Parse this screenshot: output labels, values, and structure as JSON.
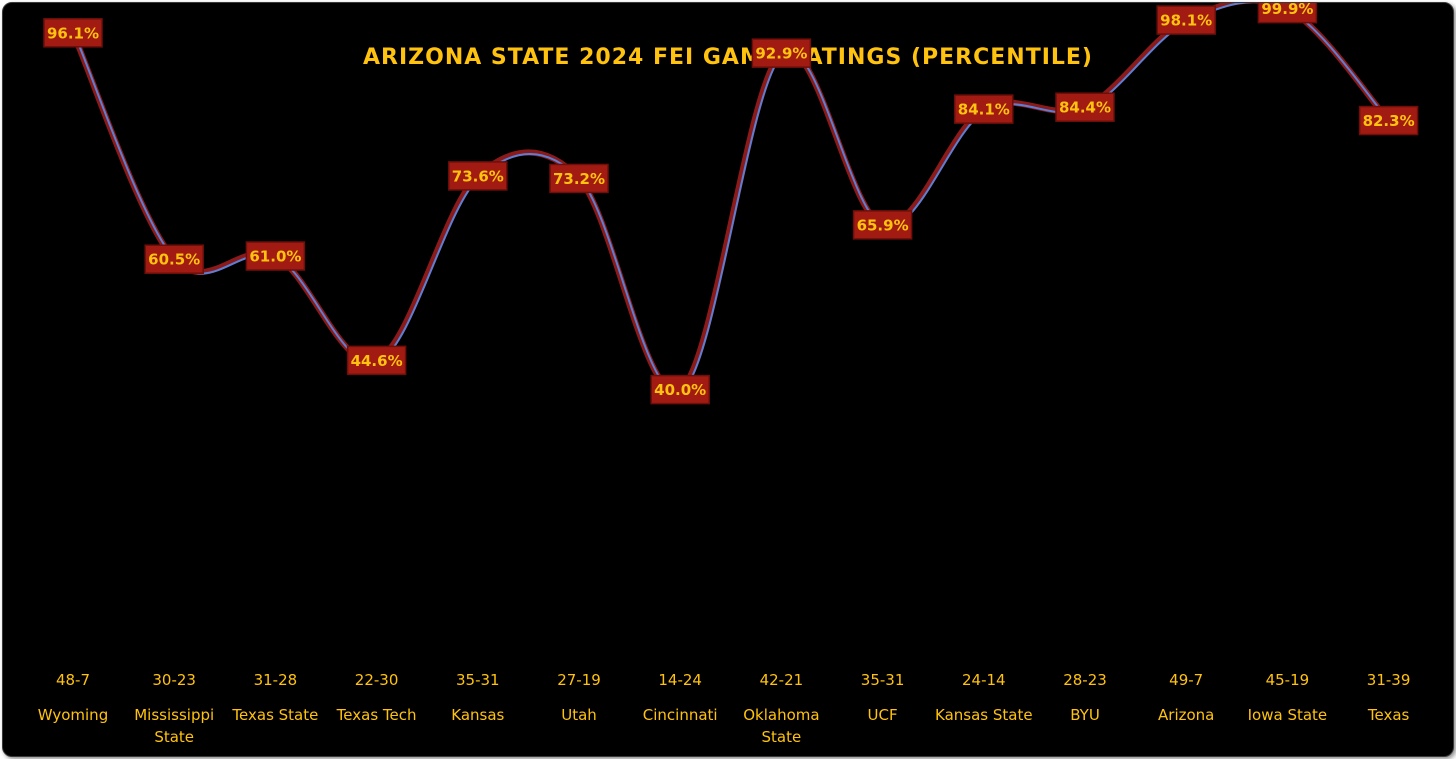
{
  "chart_data": {
    "type": "line",
    "title": "ARIZONA STATE 2024 FEI GAME RATINGS (PERCENTILE)",
    "xlabel": "",
    "ylabel": "",
    "ylim": [
      0,
      100
    ],
    "grid": false,
    "legend": "none",
    "smooth": true,
    "colors": {
      "background": "#000000",
      "text": "#FFC20E",
      "line": "#8B1A1A",
      "line_highlight": "#5B7FD4",
      "label_box": "#A11B12",
      "label_border": "#6E0F0A",
      "drop_line": "#FFFFFF"
    },
    "categories": [
      {
        "score": "48-7",
        "opponent": [
          "Wyoming"
        ]
      },
      {
        "score": "30-23",
        "opponent": [
          "Mississippi",
          "State"
        ]
      },
      {
        "score": "31-28",
        "opponent": [
          "Texas State"
        ]
      },
      {
        "score": "22-30",
        "opponent": [
          "Texas Tech"
        ]
      },
      {
        "score": "35-31",
        "opponent": [
          "Kansas"
        ]
      },
      {
        "score": "27-19",
        "opponent": [
          "Utah"
        ]
      },
      {
        "score": "14-24",
        "opponent": [
          "Cincinnati"
        ]
      },
      {
        "score": "42-21",
        "opponent": [
          "Oklahoma",
          "State"
        ]
      },
      {
        "score": "35-31",
        "opponent": [
          "UCF"
        ]
      },
      {
        "score": "24-14",
        "opponent": [
          "Kansas State"
        ]
      },
      {
        "score": "28-23",
        "opponent": [
          "BYU"
        ]
      },
      {
        "score": "49-7",
        "opponent": [
          "Arizona"
        ]
      },
      {
        "score": "45-19",
        "opponent": [
          "Iowa State"
        ]
      },
      {
        "score": "31-39",
        "opponent": [
          "Texas"
        ]
      }
    ],
    "values": [
      96.1,
      60.5,
      61.0,
      44.6,
      73.6,
      73.2,
      40.0,
      92.9,
      65.9,
      84.1,
      84.4,
      98.1,
      99.9,
      82.3
    ],
    "data_labels": [
      "96.1%",
      "60.5%",
      "61.0%",
      "44.6%",
      "73.6%",
      "73.2%",
      "40.0%",
      "92.9%",
      "65.9%",
      "84.1%",
      "84.4%",
      "98.1%",
      "99.9%",
      "82.3%"
    ]
  }
}
